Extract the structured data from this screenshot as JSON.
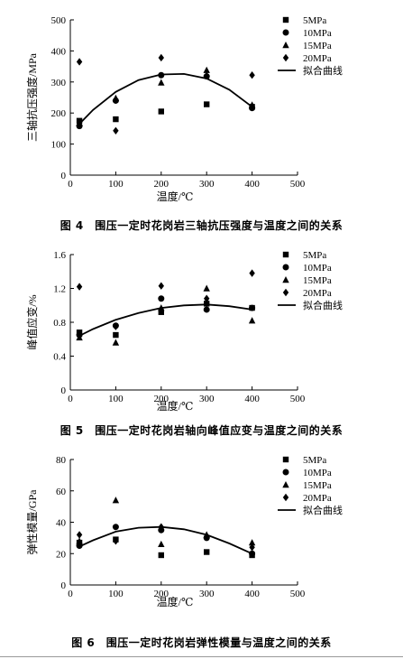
{
  "chart_data": [
    {
      "type": "scatter",
      "caption": "图 4　围压一定时花岗岩三轴抗压强度与温度之间的关系",
      "xlabel": "温度/℃",
      "ylabel": "三轴抗压强度/MPa",
      "xlim": [
        0,
        500
      ],
      "ylim": [
        0,
        500
      ],
      "xticks": [
        0,
        100,
        200,
        300,
        400,
        500
      ],
      "yticks": [
        0,
        100,
        200,
        300,
        400,
        500
      ],
      "legend_position": "top-right",
      "series": [
        {
          "name": "5MPa",
          "marker": "square",
          "x": [
            20,
            100,
            200,
            300,
            400
          ],
          "y": [
            175,
            180,
            205,
            228,
            220
          ]
        },
        {
          "name": "10MPa",
          "marker": "circle",
          "x": [
            20,
            100,
            200,
            300,
            400
          ],
          "y": [
            158,
            240,
            322,
            318,
            216
          ]
        },
        {
          "name": "15MPa",
          "marker": "triangle",
          "x": [
            20,
            100,
            200,
            300,
            400
          ],
          "y": [
            168,
            248,
            298,
            338,
            226
          ]
        },
        {
          "name": "20MPa",
          "marker": "diamond",
          "x": [
            20,
            100,
            200,
            300,
            400
          ],
          "y": [
            365,
            143,
            378,
            320,
            322
          ]
        }
      ],
      "fit": {
        "name": "拟合曲线",
        "x": [
          20,
          50,
          100,
          150,
          200,
          250,
          300,
          350,
          400
        ],
        "y": [
          165,
          210,
          268,
          306,
          324,
          326,
          311,
          275,
          220
        ]
      }
    },
    {
      "type": "scatter",
      "caption": "图 5　围压一定时花岗岩轴向峰值应变与温度之间的关系",
      "xlabel": "温度/℃",
      "ylabel": "峰值应变/%",
      "xlim": [
        0,
        500
      ],
      "ylim": [
        0,
        1.6
      ],
      "xticks": [
        0,
        100,
        200,
        300,
        400,
        500
      ],
      "yticks": [
        0,
        0.4,
        0.8,
        1.2,
        1.6
      ],
      "legend_position": "top-right",
      "series": [
        {
          "name": "5MPa",
          "marker": "square",
          "x": [
            20,
            100,
            200,
            300,
            400
          ],
          "y": [
            0.68,
            0.65,
            0.92,
            1.02,
            0.97
          ]
        },
        {
          "name": "10MPa",
          "marker": "circle",
          "x": [
            20,
            100,
            200,
            300,
            400
          ],
          "y": [
            0.65,
            0.76,
            1.08,
            0.95,
            0.97
          ]
        },
        {
          "name": "15MPa",
          "marker": "triangle",
          "x": [
            20,
            100,
            200,
            300,
            400
          ],
          "y": [
            0.62,
            0.56,
            0.97,
            1.2,
            0.82
          ]
        },
        {
          "name": "20MPa",
          "marker": "diamond",
          "x": [
            20,
            100,
            200,
            300,
            400
          ],
          "y": [
            1.22,
            0.75,
            1.23,
            1.08,
            1.38
          ]
        }
      ],
      "fit": {
        "name": "拟合曲线",
        "x": [
          20,
          50,
          100,
          150,
          200,
          250,
          300,
          350,
          400
        ],
        "y": [
          0.64,
          0.72,
          0.83,
          0.91,
          0.97,
          1.0,
          1.01,
          0.99,
          0.95
        ]
      }
    },
    {
      "type": "scatter",
      "caption": "图 6　围压一定时花岗岩弹性模量与温度之间的关系",
      "xlabel": "温度/℃",
      "ylabel": "弹性模量/GPa",
      "xlim": [
        0,
        500
      ],
      "ylim": [
        0,
        80
      ],
      "xticks": [
        0,
        100,
        200,
        300,
        400,
        500
      ],
      "yticks": [
        0,
        20,
        40,
        60,
        80
      ],
      "legend_position": "top-right",
      "series": [
        {
          "name": "5MPa",
          "marker": "square",
          "x": [
            20,
            100,
            200,
            300,
            400
          ],
          "y": [
            27,
            29,
            19,
            21,
            19
          ]
        },
        {
          "name": "10MPa",
          "marker": "circle",
          "x": [
            20,
            100,
            200,
            300,
            400
          ],
          "y": [
            25,
            37,
            35,
            30,
            20
          ]
        },
        {
          "name": "15MPa",
          "marker": "triangle",
          "x": [
            20,
            100,
            200,
            300,
            400
          ],
          "y": [
            28,
            54,
            26,
            32,
            27
          ]
        },
        {
          "name": "20MPa",
          "marker": "diamond",
          "x": [
            20,
            100,
            200,
            300,
            400
          ],
          "y": [
            32,
            28,
            37,
            31,
            24
          ]
        }
      ],
      "fit": {
        "name": "拟合曲线",
        "x": [
          20,
          50,
          100,
          150,
          200,
          250,
          300,
          350,
          400
        ],
        "y": [
          24.5,
          28.5,
          34,
          36.5,
          37,
          35.5,
          32,
          26.5,
          20
        ]
      }
    }
  ]
}
